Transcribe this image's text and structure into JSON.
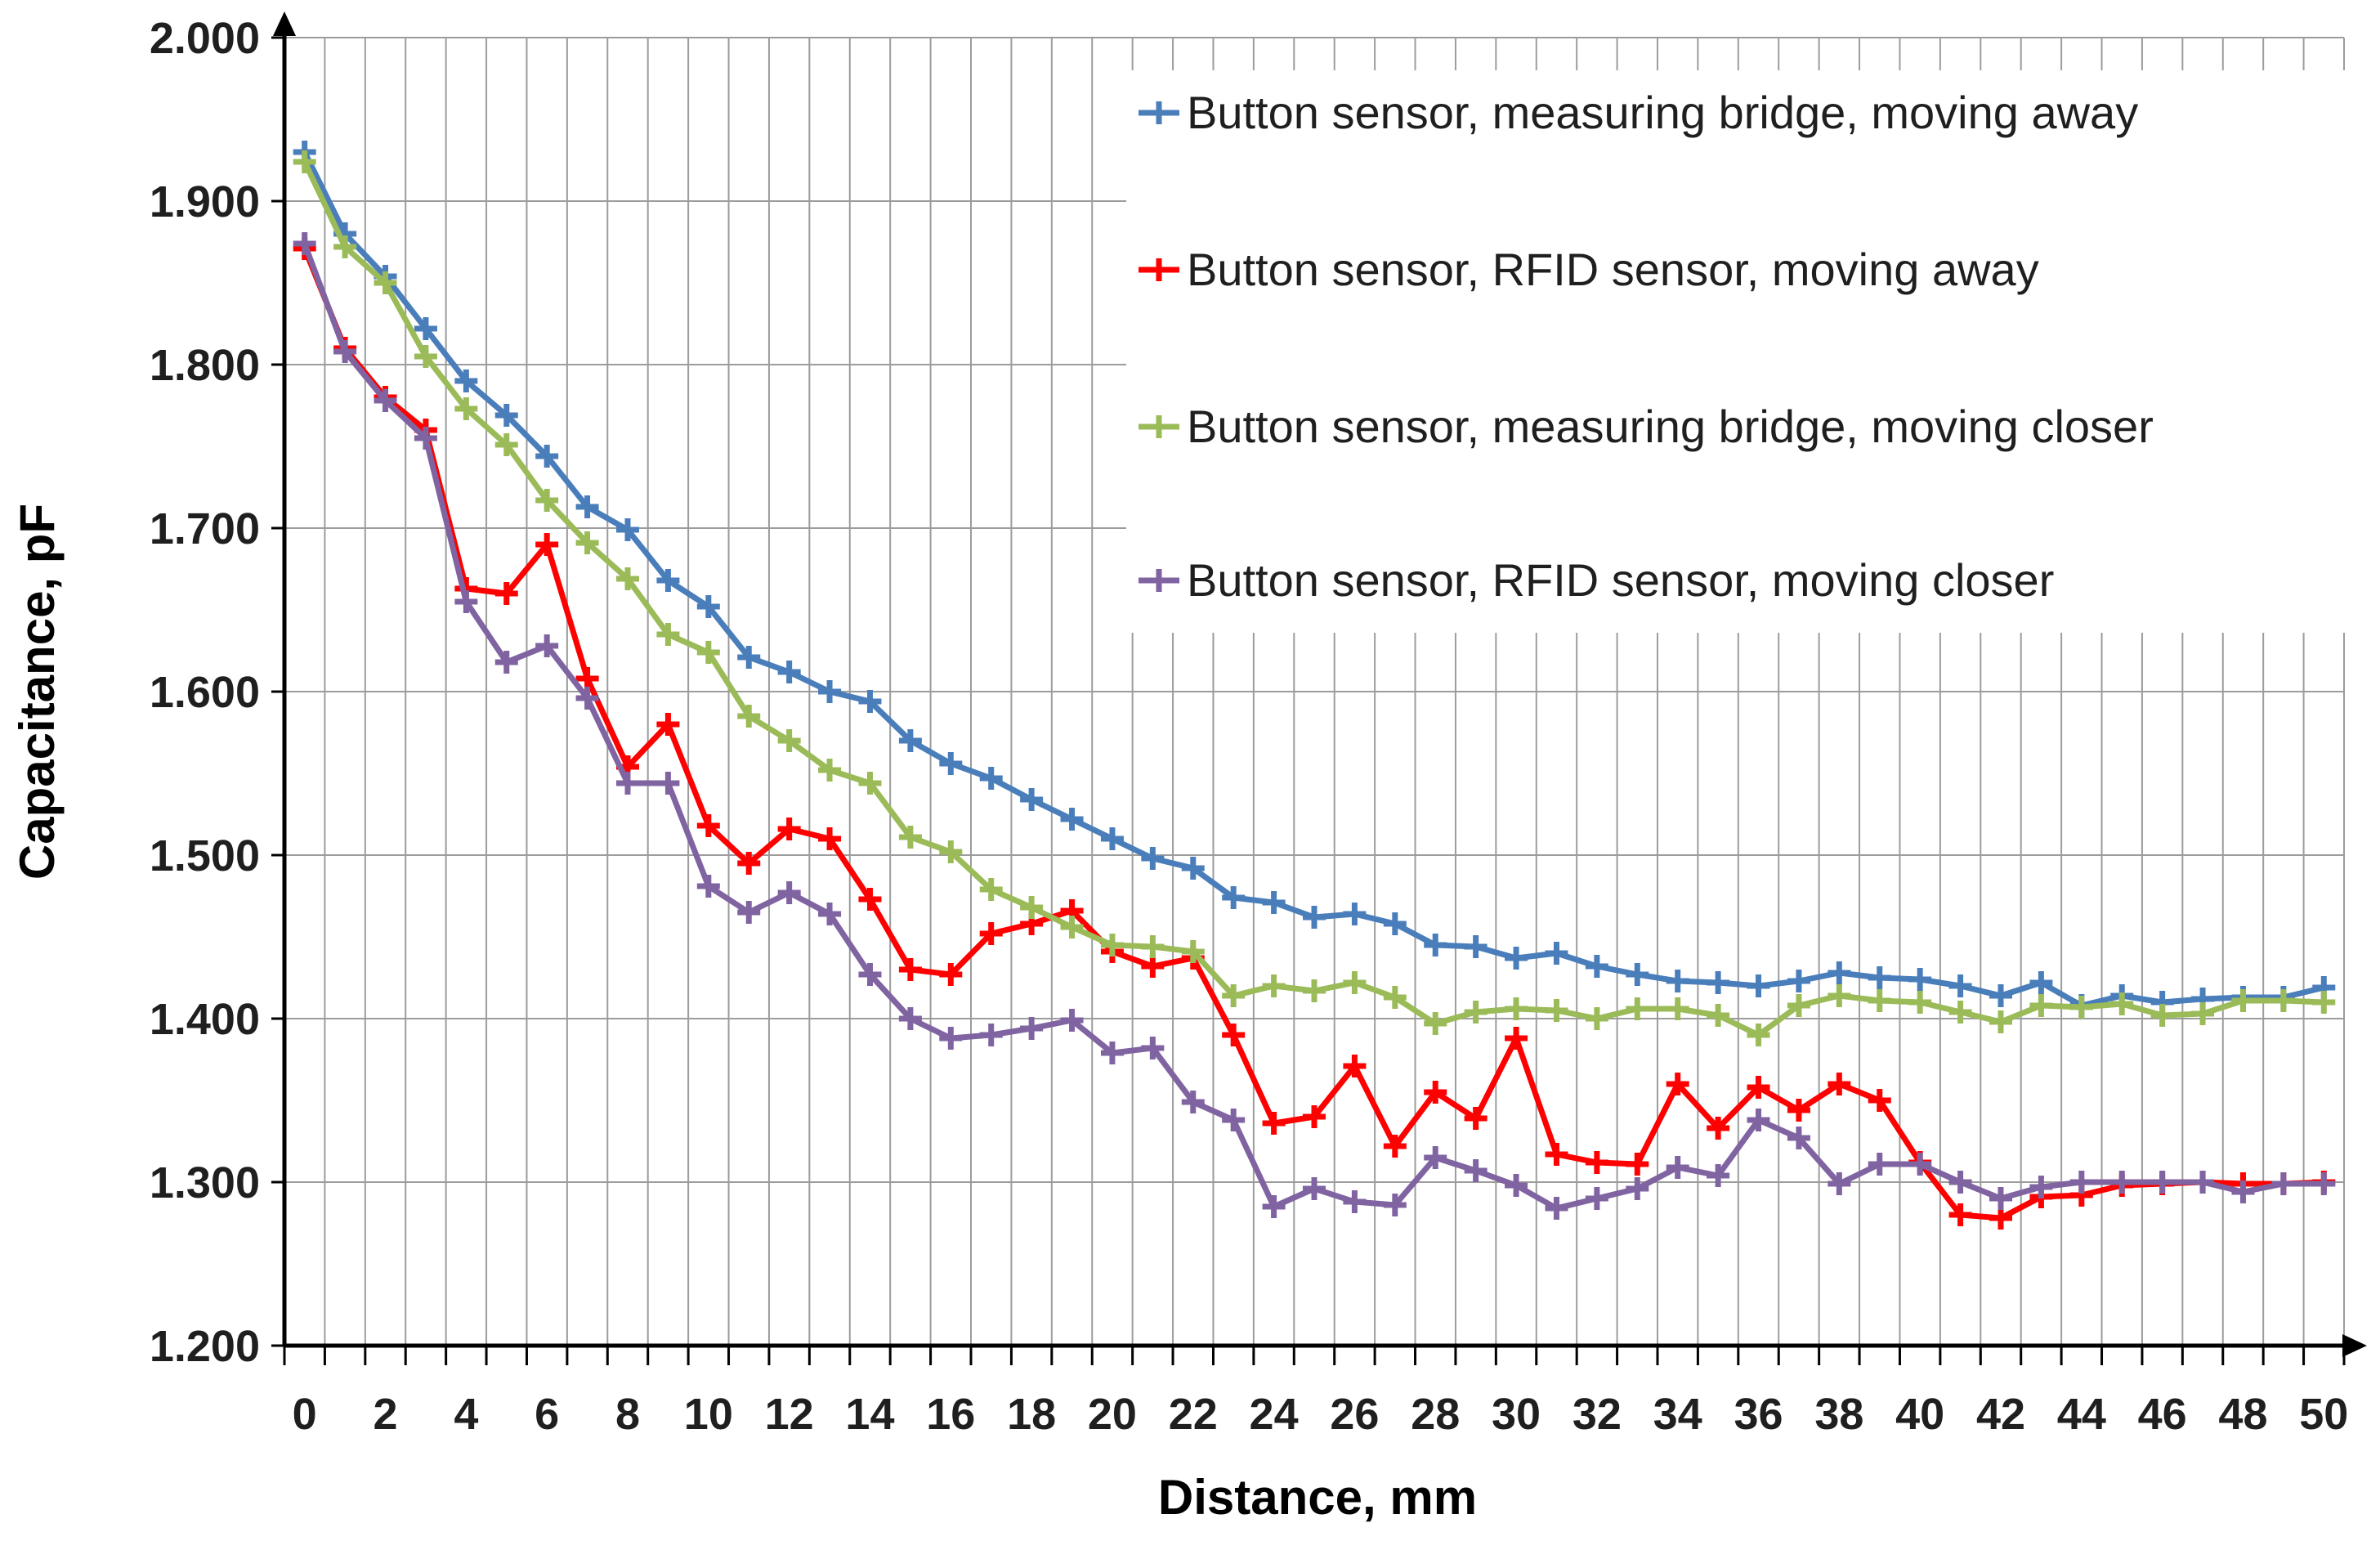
{
  "chart_data": {
    "type": "line",
    "title": "",
    "xlabel": "Distance, mm",
    "ylabel": "Capacitance, pF",
    "xlim": [
      0,
      50
    ],
    "ylim": [
      1.2,
      2.0
    ],
    "x": [
      0,
      1,
      2,
      3,
      4,
      5,
      6,
      7,
      8,
      9,
      10,
      11,
      12,
      13,
      14,
      15,
      16,
      17,
      18,
      19,
      20,
      21,
      22,
      23,
      24,
      25,
      26,
      27,
      28,
      29,
      30,
      31,
      32,
      33,
      34,
      35,
      36,
      37,
      38,
      39,
      40,
      41,
      42,
      43,
      44,
      45,
      46,
      47,
      48,
      49,
      50
    ],
    "xtick_labels": [
      "0",
      "2",
      "4",
      "6",
      "8",
      "10",
      "12",
      "14",
      "16",
      "18",
      "20",
      "22",
      "24",
      "26",
      "28",
      "30",
      "32",
      "34",
      "36",
      "38",
      "40",
      "42",
      "44",
      "46",
      "48",
      "50"
    ],
    "ytick_labels": [
      "2.000",
      "1.900",
      "1.800",
      "1.700",
      "1.600",
      "1.500",
      "1.400",
      "1.300",
      "1.200"
    ],
    "grid": true,
    "legend_position": "top-right",
    "marker_style": "plus",
    "series": [
      {
        "name": "Button sensor, measuring bridge, moving away",
        "color": "#4A7EBB",
        "values": [
          1.93,
          1.88,
          1.854,
          1.822,
          1.79,
          1.769,
          1.744,
          1.713,
          1.699,
          1.668,
          1.652,
          1.621,
          1.612,
          1.6,
          1.594,
          1.57,
          1.556,
          1.547,
          1.534,
          1.522,
          1.51,
          1.498,
          1.492,
          1.474,
          1.471,
          1.462,
          1.464,
          1.458,
          1.445,
          1.444,
          1.437,
          1.44,
          1.432,
          1.427,
          1.423,
          1.422,
          1.42,
          1.423,
          1.428,
          1.425,
          1.424,
          1.42,
          1.414,
          1.422,
          1.408,
          1.414,
          1.41,
          1.412,
          1.413,
          1.413,
          1.419
        ]
      },
      {
        "name": "Button sensor, RFID sensor, moving away",
        "color": "#FE0000",
        "values": [
          1.871,
          1.81,
          1.78,
          1.76,
          1.663,
          1.66,
          1.69,
          1.608,
          1.554,
          1.58,
          1.518,
          1.495,
          1.516,
          1.51,
          1.473,
          1.43,
          1.427,
          1.452,
          1.458,
          1.466,
          1.441,
          1.432,
          1.437,
          1.39,
          1.336,
          1.34,
          1.371,
          1.322,
          1.355,
          1.339,
          1.388,
          1.317,
          1.312,
          1.311,
          1.36,
          1.333,
          1.358,
          1.344,
          1.36,
          1.35,
          1.312,
          1.28,
          1.278,
          1.291,
          1.292,
          1.298,
          1.299,
          1.3,
          1.299,
          1.299,
          1.3
        ]
      },
      {
        "name": "Button sensor, measuring bridge, moving closer",
        "color": "#9BBB59",
        "values": [
          1.924,
          1.872,
          1.85,
          1.805,
          1.773,
          1.751,
          1.717,
          1.691,
          1.669,
          1.635,
          1.624,
          1.585,
          1.57,
          1.552,
          1.544,
          1.511,
          1.502,
          1.479,
          1.468,
          1.456,
          1.445,
          1.444,
          1.441,
          1.414,
          1.42,
          1.417,
          1.422,
          1.413,
          1.397,
          1.404,
          1.406,
          1.405,
          1.4,
          1.406,
          1.406,
          1.402,
          1.39,
          1.408,
          1.414,
          1.411,
          1.41,
          1.404,
          1.398,
          1.408,
          1.407,
          1.409,
          1.402,
          1.403,
          1.411,
          1.411,
          1.41
        ]
      },
      {
        "name": "Button sensor, RFID sensor, moving closer",
        "color": "#8064A2",
        "values": [
          1.874,
          1.808,
          1.778,
          1.755,
          1.655,
          1.618,
          1.628,
          1.596,
          1.544,
          1.544,
          1.481,
          1.465,
          1.477,
          1.464,
          1.427,
          1.4,
          1.388,
          1.39,
          1.394,
          1.399,
          1.379,
          1.382,
          1.349,
          1.338,
          1.285,
          1.296,
          1.288,
          1.286,
          1.315,
          1.307,
          1.298,
          1.284,
          1.29,
          1.296,
          1.309,
          1.304,
          1.338,
          1.327,
          1.299,
          1.311,
          1.311,
          1.3,
          1.29,
          1.297,
          1.3,
          1.3,
          1.3,
          1.3,
          1.294,
          1.299,
          1.299
        ]
      }
    ]
  }
}
